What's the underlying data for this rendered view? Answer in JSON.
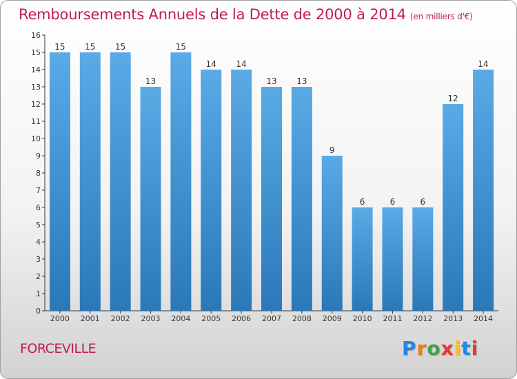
{
  "title": "Remboursements Annuels de la Dette de 2000 à 2014",
  "title_unit": "(en milliers d'€)",
  "commune": "FORCEVILLE",
  "logo": {
    "text": "Proxiti",
    "letters": [
      "P",
      "r",
      "o",
      "x",
      "i",
      "t",
      "i"
    ],
    "colors": [
      "#1e88e5",
      "#f57c00",
      "#43a047",
      "#e53935",
      "#fbc02d",
      "#1e88e5",
      "#e53935"
    ]
  },
  "colors": {
    "bar_top": "#5aaae6",
    "bar_bottom": "#2a78b8",
    "title": "#c2185b",
    "axis": "#333333"
  },
  "chart_data": {
    "type": "bar",
    "title": "Remboursements Annuels de la Dette de 2000 à 2014",
    "xlabel": "",
    "ylabel": "",
    "categories": [
      "2000",
      "2001",
      "2002",
      "2003",
      "2004",
      "2005",
      "2006",
      "2007",
      "2008",
      "2009",
      "2010",
      "2011",
      "2012",
      "2013",
      "2014"
    ],
    "values": [
      15,
      15,
      15,
      13,
      15,
      14,
      14,
      13,
      13,
      9,
      6,
      6,
      6,
      12,
      14
    ],
    "ylim": [
      0,
      16
    ],
    "yticks": [
      0,
      1,
      2,
      3,
      4,
      5,
      6,
      7,
      8,
      9,
      10,
      11,
      12,
      13,
      14,
      15,
      16
    ],
    "grid": false,
    "data_labels": true
  }
}
